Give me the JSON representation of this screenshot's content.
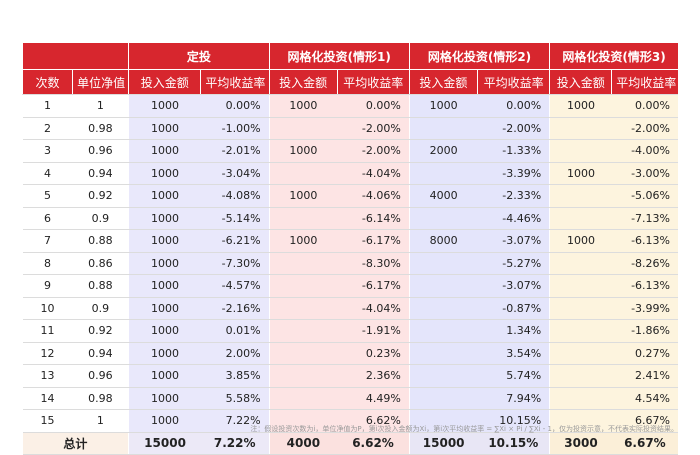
{
  "headers": {
    "group1": "定投",
    "group2": "网格化投资(情形1)",
    "group3": "网格化投资(情形2)",
    "group4": "网格化投资(情形3)",
    "col_num": "次数",
    "col_nav": "单位净值",
    "col_invest": "投入金额",
    "col_return": "平均收益率"
  },
  "rows": [
    {
      "n": "1",
      "nav": "1",
      "a_amt": "1000",
      "a_ret": "0.00%",
      "b_amt": "1000",
      "b_ret": "0.00%",
      "c_amt": "1000",
      "c_ret": "0.00%",
      "d_amt": "1000",
      "d_ret": "0.00%"
    },
    {
      "n": "2",
      "nav": "0.98",
      "a_amt": "1000",
      "a_ret": "-1.00%",
      "b_amt": "",
      "b_ret": "-2.00%",
      "c_amt": "",
      "c_ret": "-2.00%",
      "d_amt": "",
      "d_ret": "-2.00%"
    },
    {
      "n": "3",
      "nav": "0.96",
      "a_amt": "1000",
      "a_ret": "-2.01%",
      "b_amt": "1000",
      "b_ret": "-2.00%",
      "c_amt": "2000",
      "c_ret": "-1.33%",
      "d_amt": "",
      "d_ret": "-4.00%"
    },
    {
      "n": "4",
      "nav": "0.94",
      "a_amt": "1000",
      "a_ret": "-3.04%",
      "b_amt": "",
      "b_ret": "-4.04%",
      "c_amt": "",
      "c_ret": "-3.39%",
      "d_amt": "1000",
      "d_ret": "-3.00%"
    },
    {
      "n": "5",
      "nav": "0.92",
      "a_amt": "1000",
      "a_ret": "-4.08%",
      "b_amt": "1000",
      "b_ret": "-4.06%",
      "c_amt": "4000",
      "c_ret": "-2.33%",
      "d_amt": "",
      "d_ret": "-5.06%"
    },
    {
      "n": "6",
      "nav": "0.9",
      "a_amt": "1000",
      "a_ret": "-5.14%",
      "b_amt": "",
      "b_ret": "-6.14%",
      "c_amt": "",
      "c_ret": "-4.46%",
      "d_amt": "",
      "d_ret": "-7.13%"
    },
    {
      "n": "7",
      "nav": "0.88",
      "a_amt": "1000",
      "a_ret": "-6.21%",
      "b_amt": "1000",
      "b_ret": "-6.17%",
      "c_amt": "8000",
      "c_ret": "-3.07%",
      "d_amt": "1000",
      "d_ret": "-6.13%"
    },
    {
      "n": "8",
      "nav": "0.86",
      "a_amt": "1000",
      "a_ret": "-7.30%",
      "b_amt": "",
      "b_ret": "-8.30%",
      "c_amt": "",
      "c_ret": "-5.27%",
      "d_amt": "",
      "d_ret": "-8.26%"
    },
    {
      "n": "9",
      "nav": "0.88",
      "a_amt": "1000",
      "a_ret": "-4.57%",
      "b_amt": "",
      "b_ret": "-6.17%",
      "c_amt": "",
      "c_ret": "-3.07%",
      "d_amt": "",
      "d_ret": "-6.13%"
    },
    {
      "n": "10",
      "nav": "0.9",
      "a_amt": "1000",
      "a_ret": "-2.16%",
      "b_amt": "",
      "b_ret": "-4.04%",
      "c_amt": "",
      "c_ret": "-0.87%",
      "d_amt": "",
      "d_ret": "-3.99%"
    },
    {
      "n": "11",
      "nav": "0.92",
      "a_amt": "1000",
      "a_ret": "0.01%",
      "b_amt": "",
      "b_ret": "-1.91%",
      "c_amt": "",
      "c_ret": "1.34%",
      "d_amt": "",
      "d_ret": "-1.86%"
    },
    {
      "n": "12",
      "nav": "0.94",
      "a_amt": "1000",
      "a_ret": "2.00%",
      "b_amt": "",
      "b_ret": "0.23%",
      "c_amt": "",
      "c_ret": "3.54%",
      "d_amt": "",
      "d_ret": "0.27%"
    },
    {
      "n": "13",
      "nav": "0.96",
      "a_amt": "1000",
      "a_ret": "3.85%",
      "b_amt": "",
      "b_ret": "2.36%",
      "c_amt": "",
      "c_ret": "5.74%",
      "d_amt": "",
      "d_ret": "2.41%"
    },
    {
      "n": "14",
      "nav": "0.98",
      "a_amt": "1000",
      "a_ret": "5.58%",
      "b_amt": "",
      "b_ret": "4.49%",
      "c_amt": "",
      "c_ret": "7.94%",
      "d_amt": "",
      "d_ret": "4.54%"
    },
    {
      "n": "15",
      "nav": "1",
      "a_amt": "1000",
      "a_ret": "7.22%",
      "b_amt": "",
      "b_ret": "6.62%",
      "c_amt": "",
      "c_ret": "10.15%",
      "d_amt": "",
      "d_ret": "6.67%"
    }
  ],
  "total": {
    "label": "总计",
    "a_amt": "15000",
    "a_ret": "7.22%",
    "b_amt": "4000",
    "b_ret": "6.62%",
    "c_amt": "15000",
    "c_ret": "10.15%",
    "d_amt": "3000",
    "d_ret": "6.67%"
  },
  "footnote": "注：假设投资次数为i，单位净值为P，第i次投入金额为Xi，第i次平均收益率 = ∑Xi × Pi / ∑Xi - 1，仅为投资示意，不代表实际投资结果。"
}
